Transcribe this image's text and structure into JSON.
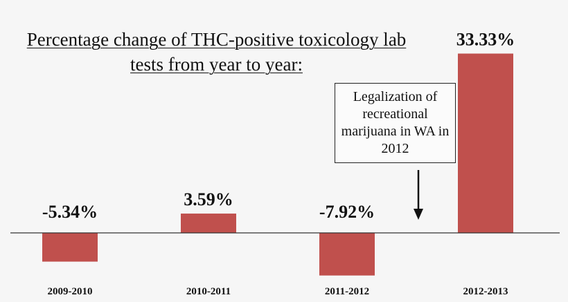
{
  "title_lines": [
    "Percentage change of THC-positive toxicology lab",
    "tests from year to year:"
  ],
  "annotation": {
    "text": "Legalization of recreational marijuana in WA in 2012"
  },
  "chart_data": {
    "type": "bar",
    "title": "Percentage change of THC-positive toxicology lab tests from year to year:",
    "categories": [
      "2009-2010",
      "2010-2011",
      "2011-2012",
      "2012-2013"
    ],
    "values": [
      -5.34,
      3.59,
      -7.92,
      33.33
    ],
    "value_labels": [
      "-5.34%",
      "3.59%",
      "-7.92%",
      "33.33%"
    ],
    "xlabel": "",
    "ylabel": "",
    "ylim": [
      -8.5,
      34.5
    ],
    "grid": false,
    "legend": "none",
    "colors": {
      "bar": "#c0504d",
      "axis": "#333333",
      "background": "#f6f6f6"
    }
  }
}
